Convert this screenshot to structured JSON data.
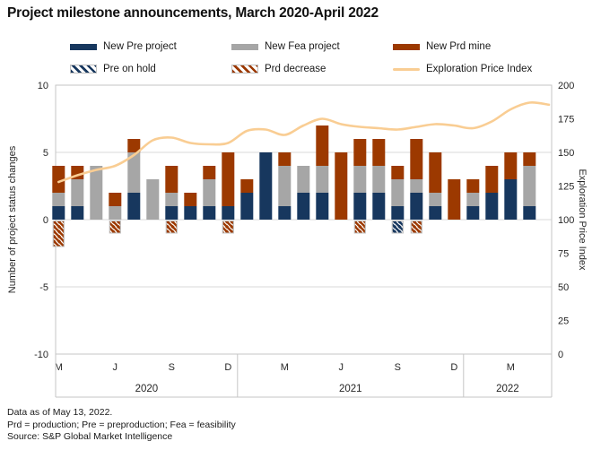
{
  "title": "Project milestone announcements, March 2020-April 2022",
  "legend": [
    {
      "label": "New Pre project",
      "type": "solid",
      "color": "#17375E"
    },
    {
      "label": "New Fea project",
      "type": "solid",
      "color": "#A6A6A6"
    },
    {
      "label": "New Prd mine",
      "type": "solid",
      "color": "#9C3900"
    },
    {
      "label": "Pre on hold",
      "type": "hatch",
      "color": "#17375E"
    },
    {
      "label": "Prd decrease",
      "type": "hatch",
      "color": "#9C3900"
    },
    {
      "label": "Exploration Price Index",
      "type": "line",
      "color": "#F9CD93"
    }
  ],
  "footer": {
    "line1": "Data as of May 13, 2022.",
    "line2": "Prd = production; Pre = preproduction; Fea = feasibility",
    "line3": "Source: S&P Global Market Intelligence"
  },
  "chart_data": {
    "type": "combo-stacked-bar-line",
    "months": [
      "Mar 2020",
      "Apr 2020",
      "May 2020",
      "Jun 2020",
      "Jul 2020",
      "Aug 2020",
      "Sep 2020",
      "Oct 2020",
      "Nov 2020",
      "Dec 2020",
      "Jan 2021",
      "Feb 2021",
      "Mar 2021",
      "Apr 2021",
      "May 2021",
      "Jun 2021",
      "Jul 2021",
      "Aug 2021",
      "Sep 2021",
      "Oct 2021",
      "Nov 2021",
      "Dec 2021",
      "Jan 2022",
      "Feb 2022",
      "Mar 2022",
      "Apr 2022"
    ],
    "series": [
      {
        "name": "New Pre project",
        "color": "#17375E",
        "values": [
          1,
          1,
          0,
          0,
          2,
          0,
          1,
          1,
          1,
          1,
          2,
          5,
          1,
          2,
          2,
          0,
          2,
          2,
          1,
          2,
          1,
          0,
          1,
          2,
          3,
          1
        ]
      },
      {
        "name": "New Fea project",
        "color": "#A6A6A6",
        "values": [
          1,
          2,
          4,
          1,
          3,
          3,
          1,
          0,
          2,
          0,
          0,
          0,
          3,
          2,
          2,
          0,
          2,
          2,
          2,
          1,
          1,
          0,
          1,
          0,
          0,
          3
        ]
      },
      {
        "name": "New Prd mine",
        "color": "#9C3900",
        "values": [
          2,
          1,
          0,
          1,
          1,
          0,
          2,
          1,
          1,
          4,
          1,
          0,
          1,
          0,
          3,
          5,
          2,
          2,
          1,
          3,
          3,
          3,
          1,
          2,
          2,
          1
        ]
      },
      {
        "name": "Pre on hold",
        "color": "#17375E",
        "hatch": true,
        "values": [
          0,
          0,
          0,
          0,
          0,
          0,
          0,
          0,
          0,
          0,
          0,
          0,
          0,
          0,
          0,
          0,
          0,
          0,
          -1,
          0,
          0,
          0,
          0,
          0,
          0,
          0
        ]
      },
      {
        "name": "Prd decrease",
        "color": "#9C3900",
        "hatch": true,
        "values": [
          -2,
          0,
          0,
          -1,
          0,
          0,
          -1,
          0,
          0,
          -1,
          0,
          0,
          0,
          0,
          0,
          0,
          -1,
          0,
          0,
          -1,
          0,
          0,
          0,
          0,
          0,
          0
        ]
      },
      {
        "name": "Exploration Price Index",
        "color": "#F9CD93",
        "axis": "right",
        "values": [
          128,
          133,
          137,
          140,
          148,
          159,
          161,
          157,
          156,
          157,
          166,
          167,
          163,
          170,
          175,
          171,
          169,
          168,
          167,
          169,
          171,
          170,
          168,
          173,
          182,
          187
        ],
        "end_value": 185.5
      }
    ],
    "left_axis": {
      "label": "Number of project status changes",
      "ticks": [
        "10",
        "5",
        "0",
        "-5",
        "-10"
      ],
      "range": [
        -10,
        10
      ],
      "gridlines": [
        5,
        0,
        -5
      ]
    },
    "right_axis": {
      "label": "Exploration Price Index",
      "ticks": [
        "200",
        "175",
        "150",
        "125",
        "100",
        "75",
        "50",
        "25",
        "0"
      ],
      "range": [
        0,
        200
      ]
    },
    "x_axis": {
      "month_ticks": [
        {
          "label": "M",
          "index": 0
        },
        {
          "label": "J",
          "index": 3
        },
        {
          "label": "S",
          "index": 6
        },
        {
          "label": "D",
          "index": 9
        },
        {
          "label": "M",
          "index": 12
        },
        {
          "label": "J",
          "index": 15
        },
        {
          "label": "S",
          "index": 18
        },
        {
          "label": "D",
          "index": 21
        },
        {
          "label": "M",
          "index": 24
        }
      ],
      "years": [
        {
          "label": "2020",
          "from": 0,
          "to": 9
        },
        {
          "label": "2021",
          "from": 10,
          "to": 21
        },
        {
          "label": "2022",
          "from": 22,
          "to": 25
        }
      ]
    }
  }
}
